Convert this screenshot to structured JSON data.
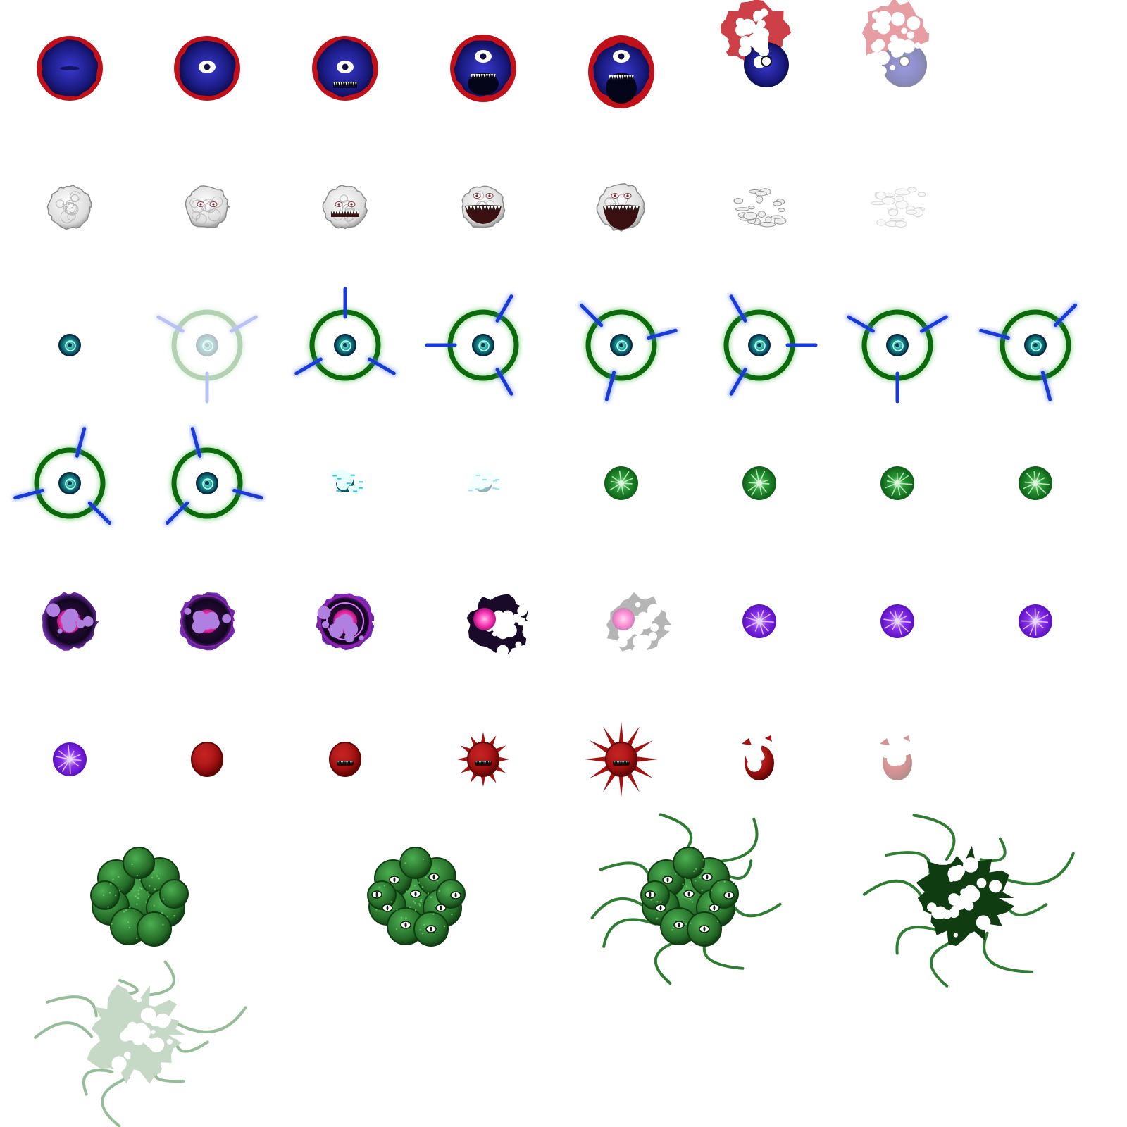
{
  "sheet": {
    "background": "#ffffff",
    "rows": [
      {
        "name": "blue-eye-blob",
        "frames": [
          "closed",
          "eye-open",
          "eye-teeth",
          "mouth-open",
          "mouth-wide",
          "burst",
          "burst-fade"
        ],
        "colors": {
          "rim": "#c0101a",
          "core": "#2a2aa0",
          "core_dark": "#141460",
          "eye": "#ffffff"
        }
      },
      {
        "name": "white-brain-blob",
        "frames": [
          "idle",
          "eyes",
          "teeth",
          "mouth-open",
          "mouth-wide",
          "burst",
          "burst-fade"
        ],
        "colors": {
          "body": "#eeeeee",
          "outline": "#8a8a8a",
          "mouth": "#3a1010"
        }
      },
      {
        "name": "green-ring-spinner",
        "frames": [
          "core",
          "spawn-fade",
          "spin-1",
          "spin-2",
          "spin-3",
          "spin-4",
          "spin-5",
          "spin-6",
          "spin-7",
          "spin-8",
          "burst",
          "burst-fade"
        ],
        "colors": {
          "ring": "#0c6a0c",
          "glow": "#7fd07f",
          "spoke": "#1a3ad8",
          "core": "#1aa79a"
        }
      },
      {
        "name": "green-star-orb",
        "frames": [
          "pulse-1",
          "pulse-2",
          "pulse-3",
          "pulse-4"
        ],
        "colors": {
          "body": "#1f8a2a",
          "star": "#d8f5d8"
        }
      },
      {
        "name": "pink-core-purple-blob",
        "frames": [
          "idle",
          "glow",
          "glow-ring",
          "burst",
          "burst-fade"
        ],
        "colors": {
          "body": "#1a0a2a",
          "core": "#ff4fc0",
          "glow": "#a020c0"
        }
      },
      {
        "name": "purple-star-orb",
        "frames": [
          "pulse-1",
          "pulse-2",
          "pulse-3",
          "pulse-4"
        ],
        "colors": {
          "body": "#7a1ee6",
          "star": "#e8d8ff"
        }
      },
      {
        "name": "red-cell",
        "frames": [
          "idle",
          "teeth",
          "spikes",
          "spikes-wide",
          "burst",
          "burst-fade"
        ],
        "colors": {
          "body": "#a51010",
          "dark": "#600808"
        }
      },
      {
        "name": "green-eyed-cluster",
        "frames": [
          "idle",
          "eyes",
          "tentacles",
          "burst",
          "burst-fade"
        ],
        "colors": {
          "body": "#2e7d32",
          "dark": "#103c12",
          "eye": "#ffffff"
        }
      }
    ]
  }
}
